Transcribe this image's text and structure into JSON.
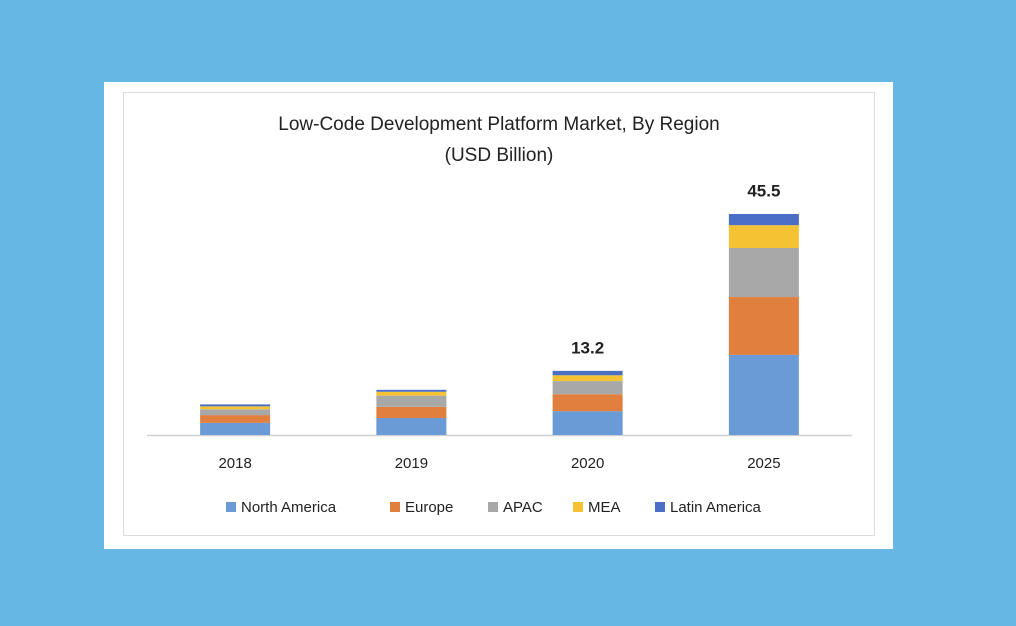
{
  "chart_data": {
    "type": "stacked_bar",
    "title": "Low-Code Development Platform Market, By Region",
    "subtitle": "(USD Billion)",
    "categories": [
      "2018",
      "2019",
      "2020",
      "2025"
    ],
    "series": [
      {
        "name": "North America",
        "color": "#6a9bd6",
        "values": [
          2.5,
          3.5,
          4.9,
          16.5
        ]
      },
      {
        "name": "Europe",
        "color": "#e07f3e",
        "values": [
          1.6,
          2.3,
          3.5,
          11.9
        ]
      },
      {
        "name": "APAC",
        "color": "#a8a8a8",
        "values": [
          1.2,
          2.3,
          2.7,
          10.1
        ]
      },
      {
        "name": "MEA",
        "color": "#f5c233",
        "values": [
          0.6,
          0.8,
          1.2,
          4.7
        ]
      },
      {
        "name": "Latin America",
        "color": "#4a6fc4",
        "values": [
          0.4,
          0.4,
          0.9,
          2.3
        ]
      }
    ],
    "totals": [
      null,
      null,
      13.2,
      45.5
    ],
    "legend": "bottom"
  }
}
